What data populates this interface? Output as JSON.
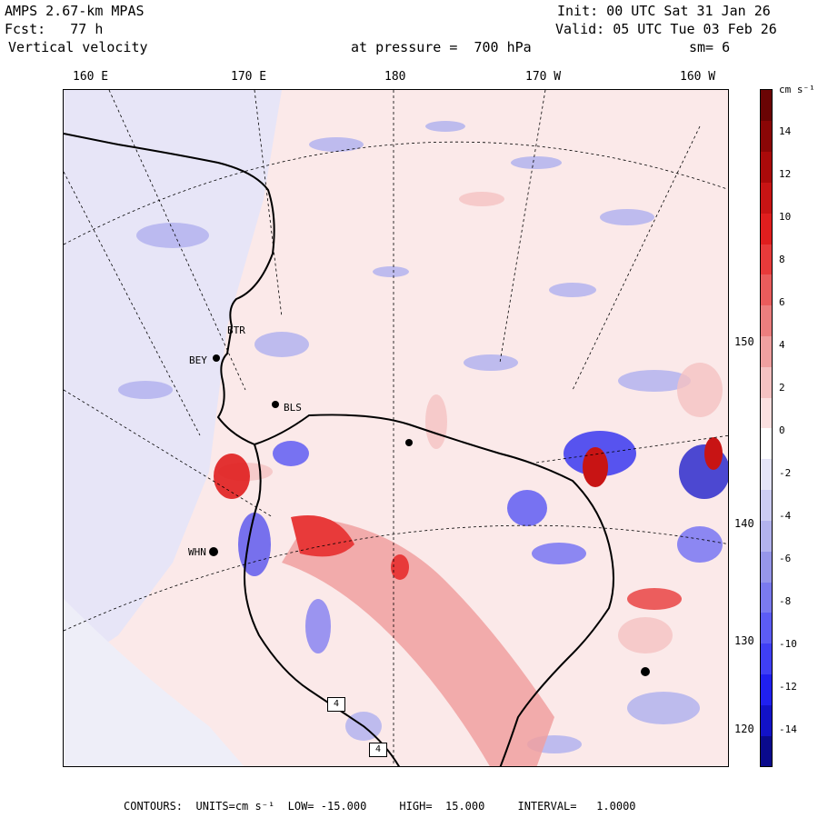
{
  "header": {
    "model": "AMPS 2.67-km MPAS",
    "init": "Init: 00 UTC Sat 31 Jan 26",
    "forecast": "Fcst:   77 h",
    "valid": "Valid: 05 UTC Tue 03 Feb 26",
    "field": "Vertical velocity",
    "level": "at pressure =  700 hPa",
    "smoothing": "sm= 6"
  },
  "top_ticks": [
    "160 E",
    "170 E",
    "180",
    "170 W",
    "160 W"
  ],
  "right_ticks": [
    "150 W",
    "140 W",
    "130 W",
    "120 W"
  ],
  "stations": [
    "BTR",
    "BEY",
    "BLS",
    "WHN"
  ],
  "box_markers": [
    "4",
    "4"
  ],
  "colorbar": {
    "units": "cm s⁻¹",
    "labels": [
      "14",
      "12",
      "10",
      "8",
      "6",
      "4",
      "2",
      "0",
      "-2",
      "-4",
      "-6",
      "-8",
      "-10",
      "-12",
      "-14"
    ],
    "colors": [
      "#0a0a8c",
      "#1212c8",
      "#2020f0",
      "#3f3ff5",
      "#5c5cf5",
      "#7a7aef",
      "#9696ea",
      "#b3b3ee",
      "#ccccf2",
      "#e4e4f8",
      "#ffffff",
      "#fbe0e0",
      "#f5c2c2",
      "#f0a0a0",
      "#ec7e7e",
      "#ea5c5c",
      "#e83a3a",
      "#e01e1e",
      "#c81414",
      "#aa0a0a",
      "#8a0606",
      "#6a0404"
    ]
  },
  "footer": {
    "contours": "CONTOURS:  UNITS=cm s⁻¹  LOW= -15.000     HIGH=  15.000     INTERVAL=   1.0000"
  }
}
